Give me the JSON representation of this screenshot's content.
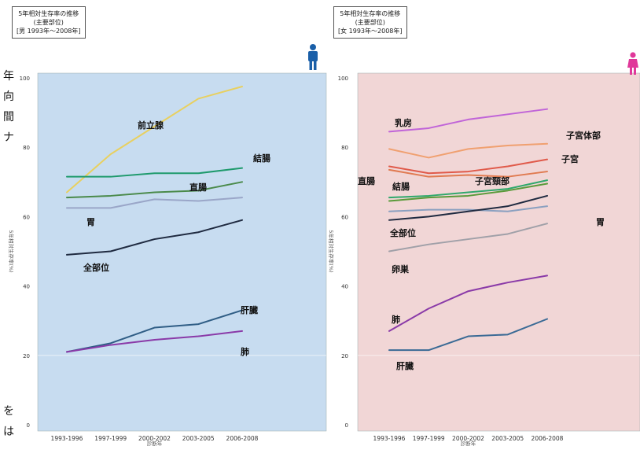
{
  "side_text": [
    "年",
    "向",
    "間",
    "ナ",
    "",
    "",
    "",
    "",
    "",
    "",
    "",
    "",
    "",
    "",
    "を",
    "は"
  ],
  "colors": {
    "male_bg": "#c7dcf0",
    "female_bg": "#f1d6d6",
    "male_icon": "#1a5fa8",
    "female_icon": "#e0389a"
  },
  "chart_data": [
    {
      "type": "line",
      "title_lines": [
        "5年相対生存率の推移",
        "(主要部位)",
        "[男 1993年〜2008年]"
      ],
      "categories": [
        "1993-1996",
        "1997-1999",
        "2000-2002",
        "2003-2005",
        "2006-2008"
      ],
      "xlabel": "診断年",
      "ylabel": "5年相対生存率(%)",
      "ylim": [
        0,
        100
      ],
      "yticks": [
        0,
        20,
        40,
        60,
        80,
        100
      ],
      "grid": false,
      "series": [
        {
          "name": "前立腺",
          "color": "#e8d060",
          "values": [
            67,
            78,
            86,
            94,
            97.5
          ]
        },
        {
          "name": "結腸",
          "color": "#1e9a6c",
          "values": [
            71.5,
            71.5,
            72.5,
            72.5,
            74
          ]
        },
        {
          "name": "直腸",
          "color": "#4a8a4a",
          "values": [
            65.5,
            66,
            67,
            67.5,
            70
          ]
        },
        {
          "name": "胃",
          "color": "#9aa6c8",
          "values": [
            62.5,
            62.5,
            65,
            64.5,
            65.5
          ]
        },
        {
          "name": "全部位",
          "color": "#1f2a40",
          "values": [
            49,
            50,
            53.5,
            55.5,
            59
          ]
        },
        {
          "name": "肝臓",
          "color": "#2f5d85",
          "values": [
            21,
            23.5,
            28,
            29,
            33
          ]
        },
        {
          "name": "肺",
          "color": "#8a3aa8",
          "values": [
            21,
            23,
            24.5,
            25.5,
            27
          ]
        }
      ]
    },
    {
      "type": "line",
      "title_lines": [
        "5年相対生存率の推移",
        "(主要部位)",
        "[女 1993年〜2008年]"
      ],
      "categories": [
        "1993-1996",
        "1997-1999",
        "2000-2002",
        "2003-2005",
        "2006-2008"
      ],
      "xlabel": "診断年",
      "ylabel": "5年相対生存率(%)",
      "ylim": [
        0,
        100
      ],
      "yticks": [
        0,
        20,
        40,
        60,
        80,
        100
      ],
      "grid": false,
      "series": [
        {
          "name": "乳房",
          "color": "#c064d8",
          "values": [
            84.5,
            85.5,
            88,
            89.5,
            91
          ]
        },
        {
          "name": "子宮体部",
          "color": "#f0a070",
          "values": [
            79.5,
            77,
            79.5,
            80.5,
            81
          ]
        },
        {
          "name": "子宮",
          "color": "#e05a4a",
          "values": [
            74.5,
            72.5,
            73,
            74.5,
            76.5
          ]
        },
        {
          "name": "子宮頸部",
          "color": "#e07a50",
          "values": [
            73.5,
            71.5,
            72,
            71.5,
            73
          ]
        },
        {
          "name": "結腸",
          "color": "#2fa86c",
          "values": [
            65.5,
            66,
            67,
            68,
            70.5
          ]
        },
        {
          "name": "直腸",
          "color": "#5a9a3a",
          "values": [
            64.5,
            65.5,
            66,
            67.5,
            69.5
          ]
        },
        {
          "name": "胃",
          "color": "#8aa0c0",
          "values": [
            61.5,
            62,
            62,
            61.5,
            63
          ]
        },
        {
          "name": "全部位",
          "color": "#1f2a40",
          "values": [
            59,
            60,
            61.5,
            63,
            66
          ]
        },
        {
          "name": "卵巣",
          "color": "#a0a0a8",
          "values": [
            50,
            52,
            53.5,
            55,
            58
          ]
        },
        {
          "name": "肺",
          "color": "#8a3aa8",
          "values": [
            27,
            33.5,
            38.5,
            41,
            43
          ]
        },
        {
          "name": "肝臓",
          "color": "#3a6a95",
          "values": [
            21.5,
            21.5,
            25.5,
            26,
            30.5
          ]
        }
      ]
    }
  ]
}
